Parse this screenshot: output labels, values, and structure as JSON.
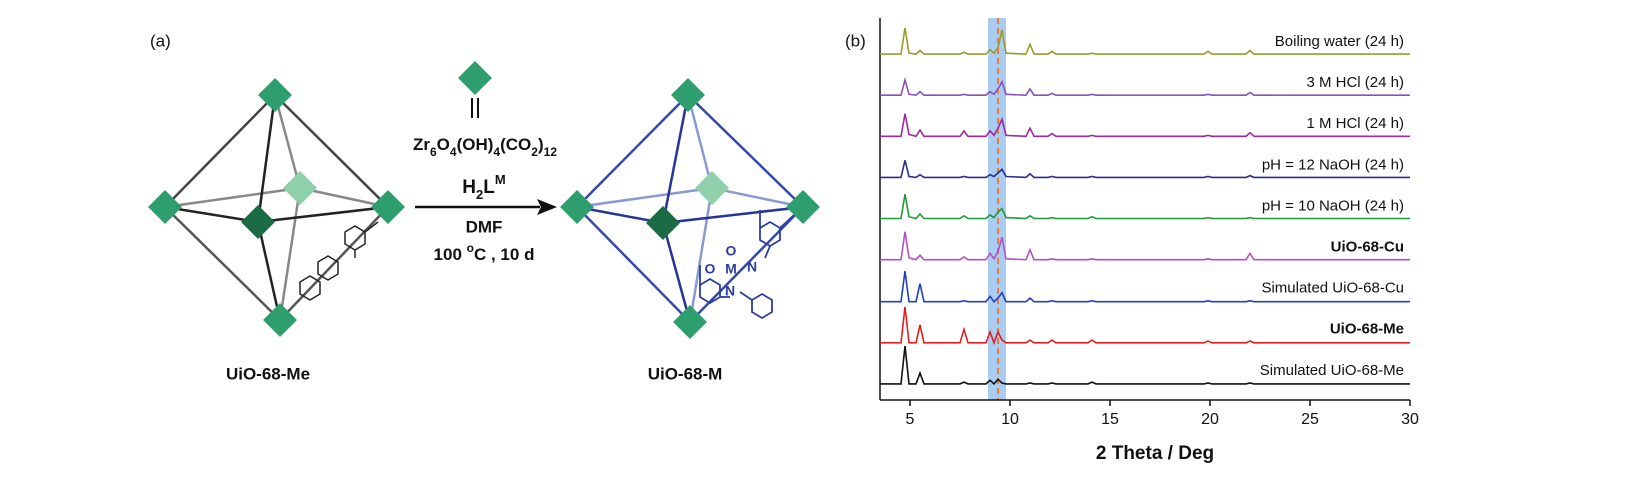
{
  "diagram": {
    "panel_label": "(a)",
    "reagent": [
      "Zr",
      "6",
      "O",
      "4",
      "(OH)",
      "4",
      "(CO",
      "2",
      ")",
      "12"
    ],
    "ligand": [
      "H",
      "2",
      "L",
      "M"
    ],
    "solvent": "DMF",
    "condition": [
      "100 ",
      "o",
      "C , 10 d"
    ],
    "left_label": "UiO-68-Me",
    "right_label": "UiO-68-M",
    "molecule_labels": [
      "O",
      "O",
      "M",
      "N",
      "N"
    ]
  },
  "chart_data": {
    "type": "line",
    "panel_label": "(b)",
    "xlabel": "2 Theta / Deg",
    "xlim": [
      3.5,
      30
    ],
    "xticks": [
      5,
      10,
      15,
      20,
      25,
      30
    ],
    "highlight_span": [
      8.9,
      9.8
    ],
    "reference_line": 9.4,
    "x": [
      3.5,
      4.55,
      4.75,
      4.95,
      5.3,
      5.5,
      5.7,
      7.5,
      7.7,
      7.9,
      8.8,
      9.0,
      9.2,
      9.4,
      9.6,
      9.8,
      10.8,
      11.0,
      11.2,
      11.9,
      12.1,
      12.3,
      13.9,
      14.1,
      14.3,
      19.7,
      19.9,
      20.1,
      21.8,
      22.0,
      22.2,
      30.0
    ],
    "series": [
      {
        "name": "Boiling water (24 h)",
        "color": "#9a9a2e",
        "bold": false,
        "values": [
          1,
          1,
          30,
          2,
          1,
          5,
          1,
          1,
          3,
          1,
          1,
          6,
          2,
          8,
          28,
          2,
          1,
          12,
          1,
          1,
          4,
          1,
          1,
          2,
          1,
          1,
          4,
          1,
          1,
          5,
          1,
          1
        ]
      },
      {
        "name": "3 M HCl (24 h)",
        "color": "#8a52b4",
        "bold": false,
        "values": [
          1,
          1,
          18,
          2,
          1,
          5,
          1,
          1,
          2,
          1,
          1,
          5,
          2,
          8,
          16,
          2,
          1,
          8,
          1,
          1,
          3,
          1,
          1,
          2,
          1,
          1,
          2,
          1,
          1,
          4,
          1,
          1
        ]
      },
      {
        "name": "1 M HCl (24 h)",
        "color": "#a0279c",
        "bold": false,
        "values": [
          1,
          1,
          26,
          3,
          1,
          8,
          1,
          1,
          7,
          1,
          1,
          7,
          2,
          10,
          20,
          2,
          1,
          10,
          1,
          1,
          4,
          1,
          1,
          2,
          1,
          1,
          2,
          1,
          1,
          5,
          1,
          1
        ]
      },
      {
        "name": "pH = 12 NaOH (24 h)",
        "color": "#2a2f8a",
        "bold": false,
        "values": [
          1,
          1,
          20,
          2,
          1,
          4,
          1,
          1,
          2,
          1,
          1,
          4,
          2,
          6,
          10,
          2,
          1,
          5,
          1,
          1,
          2,
          1,
          1,
          2,
          1,
          1,
          2,
          1,
          1,
          3,
          1,
          1
        ]
      },
      {
        "name": "pH = 10 NaOH (24 h)",
        "color": "#1f9a3a",
        "bold": false,
        "values": [
          1,
          1,
          28,
          3,
          1,
          6,
          1,
          1,
          4,
          1,
          1,
          5,
          2,
          8,
          12,
          2,
          1,
          4,
          1,
          1,
          2,
          1,
          1,
          3,
          1,
          1,
          2,
          1,
          1,
          2,
          1,
          1
        ]
      },
      {
        "name": "UiO-68-Cu",
        "color": "#b052c2",
        "bold": true,
        "values": [
          1,
          1,
          32,
          3,
          1,
          6,
          1,
          1,
          4,
          1,
          1,
          8,
          2,
          10,
          26,
          2,
          1,
          12,
          1,
          1,
          2,
          1,
          1,
          2,
          1,
          1,
          2,
          1,
          1,
          8,
          1,
          1
        ]
      },
      {
        "name": "Simulated UiO-68-Cu",
        "color": "#2040c0",
        "bold": false,
        "values": [
          0,
          0,
          34,
          0,
          0,
          20,
          0,
          0,
          1,
          0,
          0,
          6,
          0,
          4,
          10,
          0,
          0,
          4,
          0,
          0,
          1,
          0,
          0,
          1,
          0,
          0,
          1,
          0,
          0,
          1,
          0,
          0
        ]
      },
      {
        "name": "UiO-68-Me",
        "color": "#e02020",
        "bold": true,
        "values": [
          0,
          0,
          40,
          0,
          0,
          20,
          0,
          0,
          15,
          0,
          0,
          12,
          0,
          12,
          3,
          0,
          0,
          3,
          0,
          0,
          3,
          0,
          0,
          3,
          0,
          0,
          2,
          0,
          0,
          2,
          0,
          0
        ]
      },
      {
        "name": "Simulated UiO-68-Me",
        "color": "#111111",
        "bold": false,
        "values": [
          0,
          0,
          42,
          0,
          0,
          12,
          0,
          0,
          2,
          0,
          0,
          4,
          0,
          5,
          1,
          0,
          0,
          1,
          0,
          0,
          1,
          0,
          0,
          2,
          0,
          0,
          1,
          0,
          0,
          1,
          0,
          0
        ]
      }
    ]
  }
}
